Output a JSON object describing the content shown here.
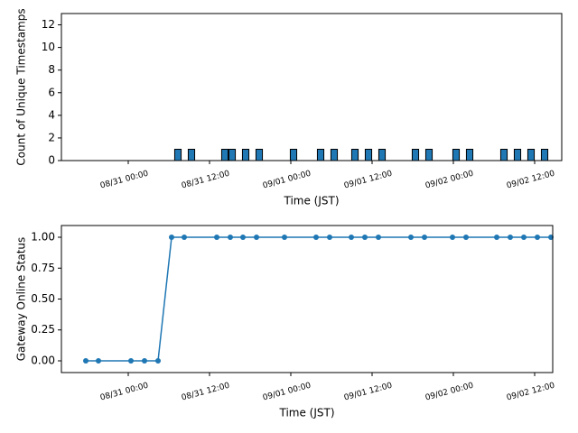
{
  "chart_data": [
    {
      "type": "bar",
      "xlabel": "Time (JST)",
      "ylabel": "Count of Unique Timestamps",
      "color": "#1f77b4",
      "x": [
        "08/31 07:20",
        "08/31 09:20",
        "08/31 14:16",
        "08/31 15:20",
        "08/31 17:20",
        "08/31 19:20",
        "09/01 00:24",
        "09/01 04:24",
        "09/01 06:24",
        "09/01 09:28",
        "09/01 11:28",
        "09/01 13:28",
        "09/01 18:24",
        "09/01 20:24",
        "09/02 00:24",
        "09/02 02:24",
        "09/02 07:28",
        "09/02 09:28",
        "09/02 11:28",
        "09/02 13:28"
      ],
      "values": [
        1,
        1,
        1,
        1,
        1,
        1,
        1,
        1,
        1,
        1,
        1,
        1,
        1,
        1,
        1,
        1,
        1,
        1,
        1,
        1
      ],
      "xlim": [
        "08/30 14:08",
        "09/02 16:00"
      ],
      "xticks": [
        "08/31 00:00",
        "08/31 12:00",
        "09/01 00:00",
        "09/01 12:00",
        "09/02 00:00",
        "09/02 12:00"
      ],
      "ylim": [
        0,
        13
      ],
      "yticks": [
        0,
        2,
        4,
        6,
        8,
        10,
        12
      ]
    },
    {
      "type": "line",
      "xlabel": "Time (JST)",
      "ylabel": "Gateway Online Status",
      "color": "#1f77b4",
      "x": [
        "08/30 17:44",
        "08/30 19:36",
        "08/31 00:24",
        "08/31 02:24",
        "08/31 04:24",
        "08/31 06:24",
        "08/31 08:16",
        "08/31 13:04",
        "08/31 15:04",
        "08/31 16:56",
        "08/31 18:56",
        "08/31 23:04",
        "09/01 03:44",
        "09/01 05:44",
        "09/01 08:56",
        "09/01 10:56",
        "09/01 12:56",
        "09/01 17:44",
        "09/01 19:44",
        "09/01 23:52",
        "09/02 01:52",
        "09/02 06:24",
        "09/02 08:24",
        "09/02 10:24",
        "09/02 12:24",
        "09/02 14:24"
      ],
      "values": [
        0,
        0,
        0,
        0,
        0,
        1,
        1,
        1,
        1,
        1,
        1,
        1,
        1,
        1,
        1,
        1,
        1,
        1,
        1,
        1,
        1,
        1,
        1,
        1,
        1,
        1
      ],
      "xlim": [
        "08/30 14:08",
        "09/02 14:40"
      ],
      "xticks": [
        "08/31 00:00",
        "08/31 12:00",
        "09/01 00:00",
        "09/01 12:00",
        "09/02 00:00",
        "09/02 12:00"
      ],
      "ylim": [
        -0.095,
        1.095
      ],
      "yticks": [
        {
          "value": 0,
          "label": "0.00"
        },
        {
          "value": 0.25,
          "label": "0.25"
        },
        {
          "value": 0.5,
          "label": "0.50"
        },
        {
          "value": 0.75,
          "label": "0.75"
        },
        {
          "value": 1,
          "label": "1.00"
        }
      ]
    }
  ]
}
